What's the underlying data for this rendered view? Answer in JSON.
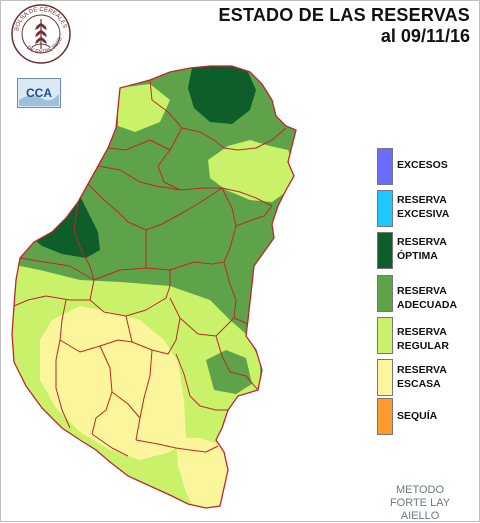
{
  "header": {
    "title": "ESTADO DE LAS RESERVAS",
    "subtitle": "al 09/11/16"
  },
  "logos": {
    "seal_text": "BOLSA DE CEREALES DE ENTRE RIOS",
    "cca_text": "CCA"
  },
  "legend": {
    "items": [
      {
        "label": "EXCESOS",
        "color": "#6b6bff"
      },
      {
        "label": "RESERVA\nEXCESIVA",
        "color": "#1ec8ff"
      },
      {
        "label": "RESERVA\nÓPTIMA",
        "color": "#0d5e2a"
      },
      {
        "label": "RESERVA\nADECUADA",
        "color": "#5ea34a"
      },
      {
        "label": "RESERVA\nREGULAR",
        "color": "#c9f26a"
      },
      {
        "label": "RESERVA\nESCASA",
        "color": "#fbf59c"
      },
      {
        "label": "SEQUÍA",
        "color": "#ff9a2e"
      }
    ]
  },
  "footer": {
    "method": "METODO\nFORTE LAY\nAIELLO"
  }
}
